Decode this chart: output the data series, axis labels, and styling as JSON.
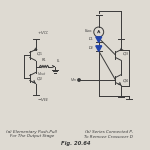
{
  "title": "Fig. 20.64",
  "caption_a1": "(a) Elementary Push-Pull",
  "caption_a2": "For The Output Stage",
  "caption_b1": "(b) Series Connected P-",
  "caption_b2": "To Remove Crossover D",
  "bg_color": "#dedad2",
  "line_color": "#3a3a3a",
  "diode_color": "#2244aa",
  "figsize": [
    1.5,
    1.5
  ],
  "dpi": 100
}
